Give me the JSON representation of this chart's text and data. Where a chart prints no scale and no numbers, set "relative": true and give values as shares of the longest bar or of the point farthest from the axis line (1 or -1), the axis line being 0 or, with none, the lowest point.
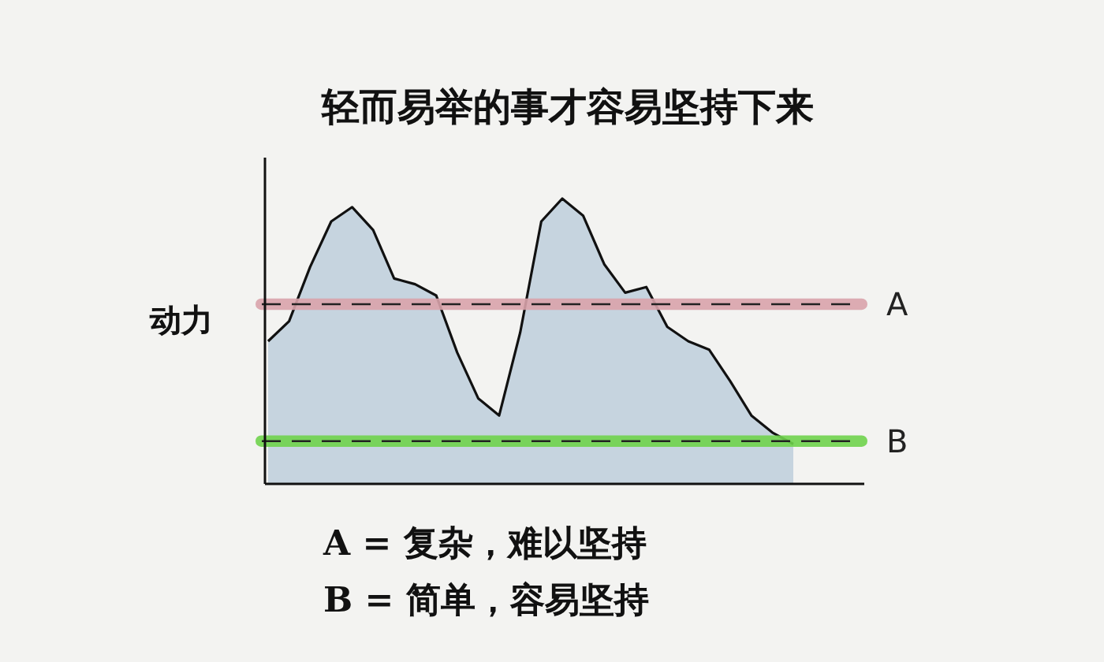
{
  "chart_data": {
    "type": "area",
    "title": "轻而易举的事才容易坚持下来",
    "ylabel": "动力",
    "relative": true,
    "categories": [
      null,
      null,
      null,
      null,
      null,
      null,
      null,
      null,
      null,
      null,
      null,
      null,
      null,
      null,
      null,
      null,
      null,
      null,
      null,
      null,
      null,
      null,
      null,
      null,
      null,
      null
    ],
    "series": [
      {
        "color": "#c6d4df",
        "values": [
          0.5,
          0.57,
          0.76,
          0.92,
          0.97,
          0.89,
          0.72,
          0.7,
          0.66,
          0.46,
          0.3,
          0.24,
          0.53,
          0.92,
          1,
          0.94,
          0.77,
          0.67,
          0.69,
          0.55,
          0.5,
          0.47,
          0.36,
          0.24,
          0.18,
          0.14
        ]
      }
    ],
    "ref_lines": [
      {
        "axis": "y",
        "value": 0.63,
        "label": "A",
        "color": "#222222",
        "line_style": "dashed"
      },
      {
        "axis": "y",
        "value": 0.15,
        "label": "B",
        "color": "#222222",
        "line_style": "dashed"
      }
    ],
    "bands": [
      {
        "axis": "y",
        "from": 0.61,
        "to": 0.65,
        "color": "#d9a3ab"
      },
      {
        "axis": "y",
        "from": 0.13,
        "to": 0.17,
        "color": "#6fd34c"
      }
    ],
    "annotations": [
      "A = 复杂，难以坚持",
      "B = 简单，容易坚持"
    ],
    "grid": false
  }
}
